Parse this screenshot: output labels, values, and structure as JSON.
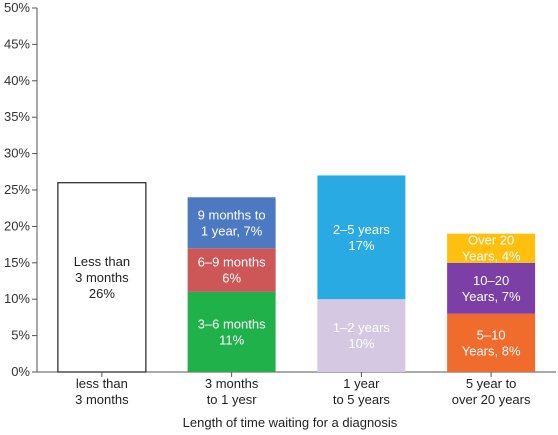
{
  "chart_data": {
    "type": "bar",
    "stacked": true,
    "xlabel": "Length of time waiting for a diagnosis",
    "ylabel": "",
    "ylim": [
      0,
      50
    ],
    "yticks": [
      "0%",
      "5%",
      "10%",
      "15%",
      "20%",
      "25%",
      "30%",
      "35%",
      "40%",
      "45%",
      "50%"
    ],
    "categories": [
      [
        "less than",
        "3 months"
      ],
      [
        "3 months",
        "to 1 yesr"
      ],
      [
        "1 year",
        "to 5 years"
      ],
      [
        "5 year to",
        "over 20 years"
      ]
    ],
    "bars": [
      {
        "segments": [
          {
            "value": 26,
            "color": "#ffffff",
            "text_color": "#222222",
            "outline": true,
            "label": [
              "Less than",
              "3 months",
              "26%"
            ]
          }
        ]
      },
      {
        "segments": [
          {
            "value": 11,
            "color": "#21b14b",
            "text_color": "#ffffff",
            "label": [
              "3–6 months",
              "11%"
            ]
          },
          {
            "value": 6,
            "color": "#cd5656",
            "text_color": "#ffffff",
            "label": [
              "6–9 months",
              "6%"
            ]
          },
          {
            "value": 7,
            "color": "#4c79c2",
            "text_color": "#ffffff",
            "label": [
              "9 months to",
              "1 year, 7%"
            ]
          }
        ]
      },
      {
        "segments": [
          {
            "value": 10,
            "color": "#d5c8e2",
            "text_color": "#ffffff",
            "label": [
              "1–2 years",
              "10%"
            ]
          },
          {
            "value": 17,
            "color": "#2aaae3",
            "text_color": "#ffffff",
            "label": [
              "2–5 years",
              "17%"
            ]
          }
        ]
      },
      {
        "segments": [
          {
            "value": 8,
            "color": "#ef6c2c",
            "text_color": "#ffffff",
            "label": [
              "5–10",
              "Years, 8%"
            ]
          },
          {
            "value": 7,
            "color": "#7b3fa6",
            "text_color": "#ffffff",
            "label": [
              "10–20",
              "Years, 7%"
            ]
          },
          {
            "value": 4,
            "color": "#ffbf0f",
            "text_color": "#ffffff",
            "label": [
              "Over 20",
              "Years, 4%"
            ]
          }
        ]
      }
    ]
  }
}
